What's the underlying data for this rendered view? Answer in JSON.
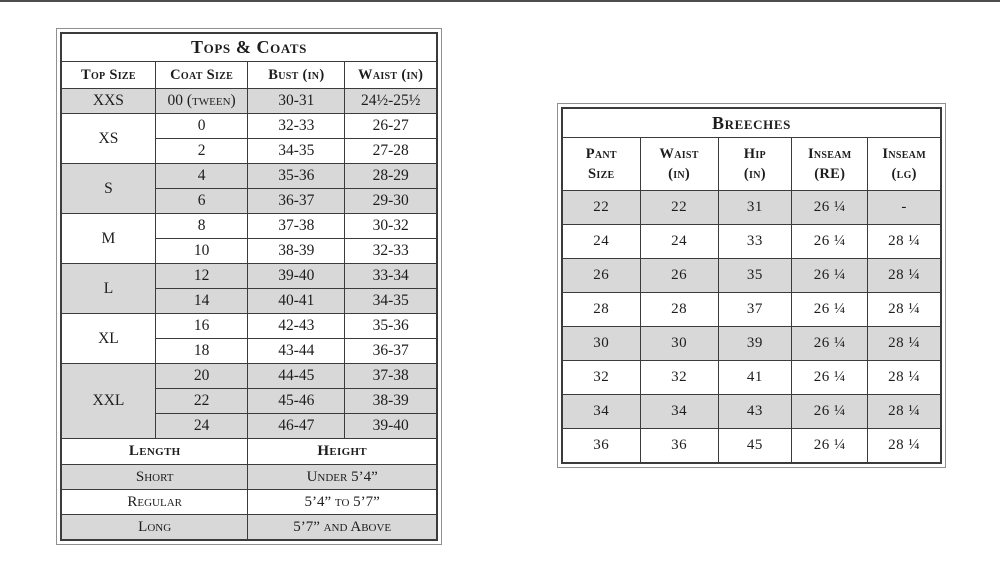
{
  "page": {
    "background": "#ffffff",
    "top_edge_color": "#4d4d4d"
  },
  "colors": {
    "shaded_row": "#d8d8d8",
    "border_dark": "#3b3b3b",
    "border_light": "#9a9a9a",
    "frame_outer": "#8f8f8f",
    "text": "#1d1d1d"
  },
  "tops_coats": {
    "title": "Tops & Coats",
    "headers": [
      "Top Size",
      "Coat Size",
      "Bust (in)",
      "Waist (in)"
    ],
    "groups": [
      {
        "size": "XXS",
        "shaded": true,
        "rows": [
          [
            "00 (tween)",
            "30-31",
            "24½-25½"
          ]
        ]
      },
      {
        "size": "XS",
        "shaded": false,
        "rows": [
          [
            "0",
            "32-33",
            "26-27"
          ],
          [
            "2",
            "34-35",
            "27-28"
          ]
        ]
      },
      {
        "size": "S",
        "shaded": true,
        "rows": [
          [
            "4",
            "35-36",
            "28-29"
          ],
          [
            "6",
            "36-37",
            "29-30"
          ]
        ]
      },
      {
        "size": "M",
        "shaded": false,
        "rows": [
          [
            "8",
            "37-38",
            "30-32"
          ],
          [
            "10",
            "38-39",
            "32-33"
          ]
        ]
      },
      {
        "size": "L",
        "shaded": true,
        "rows": [
          [
            "12",
            "39-40",
            "33-34"
          ],
          [
            "14",
            "40-41",
            "34-35"
          ]
        ]
      },
      {
        "size": "XL",
        "shaded": false,
        "rows": [
          [
            "16",
            "42-43",
            "35-36"
          ],
          [
            "18",
            "43-44",
            "36-37"
          ]
        ]
      },
      {
        "size": "XXL",
        "shaded": true,
        "rows": [
          [
            "20",
            "44-45",
            "37-38"
          ],
          [
            "22",
            "45-46",
            "38-39"
          ],
          [
            "24",
            "46-47",
            "39-40"
          ]
        ]
      }
    ],
    "length_section": {
      "headers": [
        "Length",
        "Height"
      ],
      "rows": [
        {
          "length": "Short",
          "height": "Under 5’4”",
          "shaded": true
        },
        {
          "length": "Regular",
          "height": "5’4” to 5’7”",
          "shaded": false
        },
        {
          "length": "Long",
          "height": "5’7” and Above",
          "shaded": true
        }
      ]
    }
  },
  "breeches": {
    "title": "Breeches",
    "headers": [
      {
        "line1": "Pant",
        "line2": "Size"
      },
      {
        "line1": "Waist",
        "line2": "(in)"
      },
      {
        "line1": "Hip",
        "line2": "(in)"
      },
      {
        "line1": "Inseam",
        "line2": "(RE)"
      },
      {
        "line1": "Inseam",
        "line2": "(lg)"
      }
    ],
    "rows": [
      {
        "cells": [
          "22",
          "22",
          "31",
          "26 ¼",
          "-"
        ],
        "shaded": true
      },
      {
        "cells": [
          "24",
          "24",
          "33",
          "26 ¼",
          "28 ¼"
        ],
        "shaded": false
      },
      {
        "cells": [
          "26",
          "26",
          "35",
          "26 ¼",
          "28 ¼"
        ],
        "shaded": true
      },
      {
        "cells": [
          "28",
          "28",
          "37",
          "26 ¼",
          "28 ¼"
        ],
        "shaded": false
      },
      {
        "cells": [
          "30",
          "30",
          "39",
          "26 ¼",
          "28 ¼"
        ],
        "shaded": true
      },
      {
        "cells": [
          "32",
          "32",
          "41",
          "26 ¼",
          "28 ¼"
        ],
        "shaded": false
      },
      {
        "cells": [
          "34",
          "34",
          "43",
          "26 ¼",
          "28 ¼"
        ],
        "shaded": true
      },
      {
        "cells": [
          "36",
          "36",
          "45",
          "26 ¼",
          "28 ¼"
        ],
        "shaded": false
      }
    ]
  }
}
